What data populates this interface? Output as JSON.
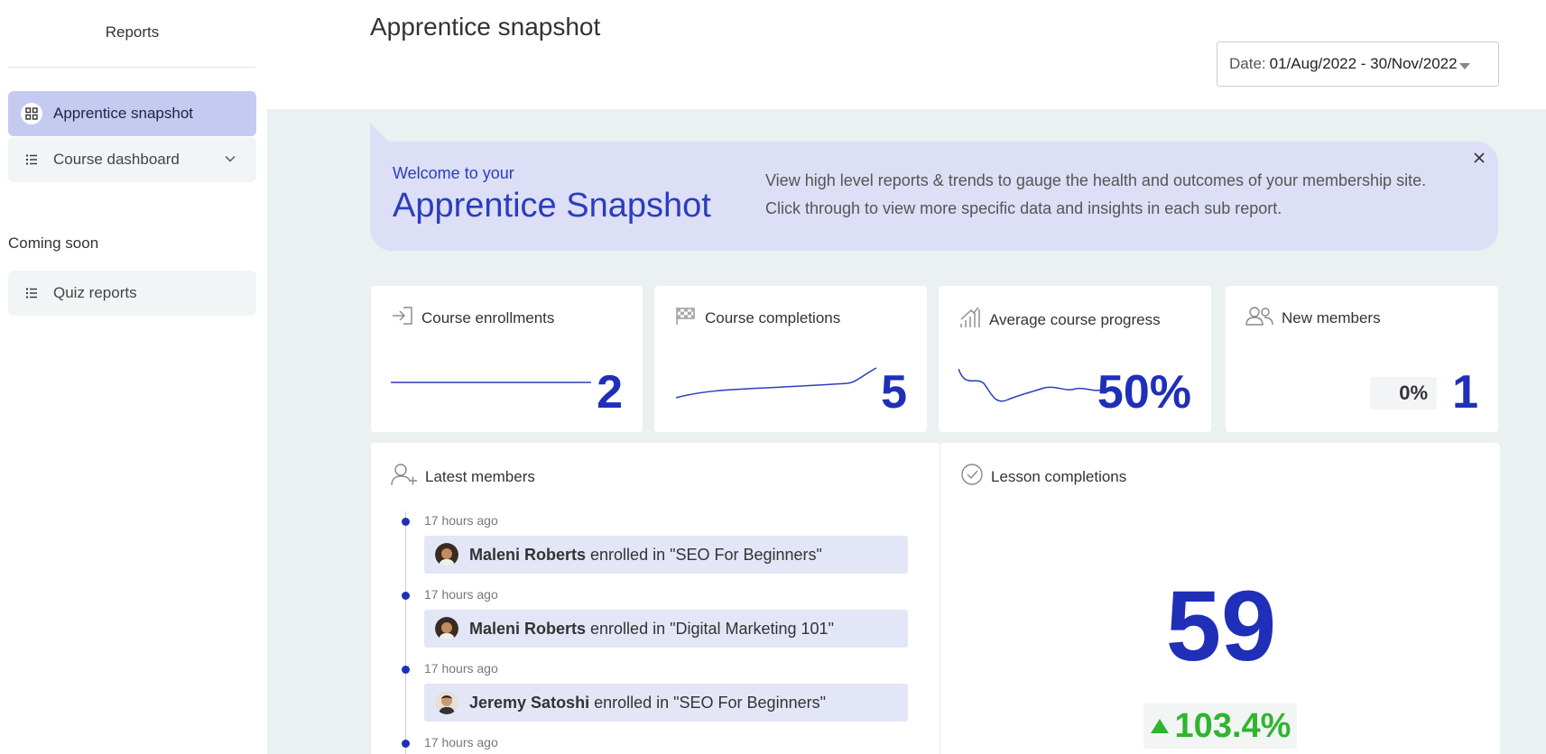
{
  "sidebar": {
    "title": "Reports",
    "items": [
      {
        "label": "Apprentice snapshot",
        "icon": "grid-icon",
        "active": true
      },
      {
        "label": "Course dashboard",
        "icon": "list-icon",
        "expandable": true
      }
    ],
    "coming_soon_label": "Coming soon",
    "coming_soon_items": [
      {
        "label": "Quiz reports",
        "icon": "list-icon"
      }
    ]
  },
  "header": {
    "title": "Apprentice snapshot",
    "date_label": "Date:",
    "date_value": "01/Aug/2022 - 30/Nov/2022"
  },
  "banner": {
    "small": "Welcome to your",
    "big": "Apprentice Snapshot",
    "line1": "View high level reports & trends to gauge the health and outcomes of your membership site.",
    "line2": "Click through to view more specific data and insights in each sub report."
  },
  "stats": {
    "enrollments": {
      "label": "Course enrollments",
      "value": "2"
    },
    "completions": {
      "label": "Course completions",
      "value": "5"
    },
    "progress": {
      "label": "Average course progress",
      "value": "50%"
    },
    "new_members": {
      "label": "New members",
      "value": "1",
      "change": "0%"
    }
  },
  "latest_members": {
    "title": "Latest members",
    "entries": [
      {
        "time": "17 hours ago",
        "name": "Maleni Roberts",
        "action": "enrolled in \"SEO For Beginners\""
      },
      {
        "time": "17 hours ago",
        "name": "Maleni Roberts",
        "action": "enrolled in \"Digital Marketing 101\""
      },
      {
        "time": "17 hours ago",
        "name": "Jeremy Satoshi",
        "action": "enrolled in \"SEO For Beginners\""
      },
      {
        "time": "17 hours ago",
        "name": "",
        "action": ""
      }
    ]
  },
  "lesson_completions": {
    "title": "Lesson completions",
    "value": "59",
    "change": "103.4%"
  },
  "colors": {
    "accent": "#1f2fb8",
    "banner_bg": "#dcdff6",
    "active_nav": "#c5cbf0",
    "positive": "#2fb52f",
    "content_bg": "#ebf0f0"
  }
}
